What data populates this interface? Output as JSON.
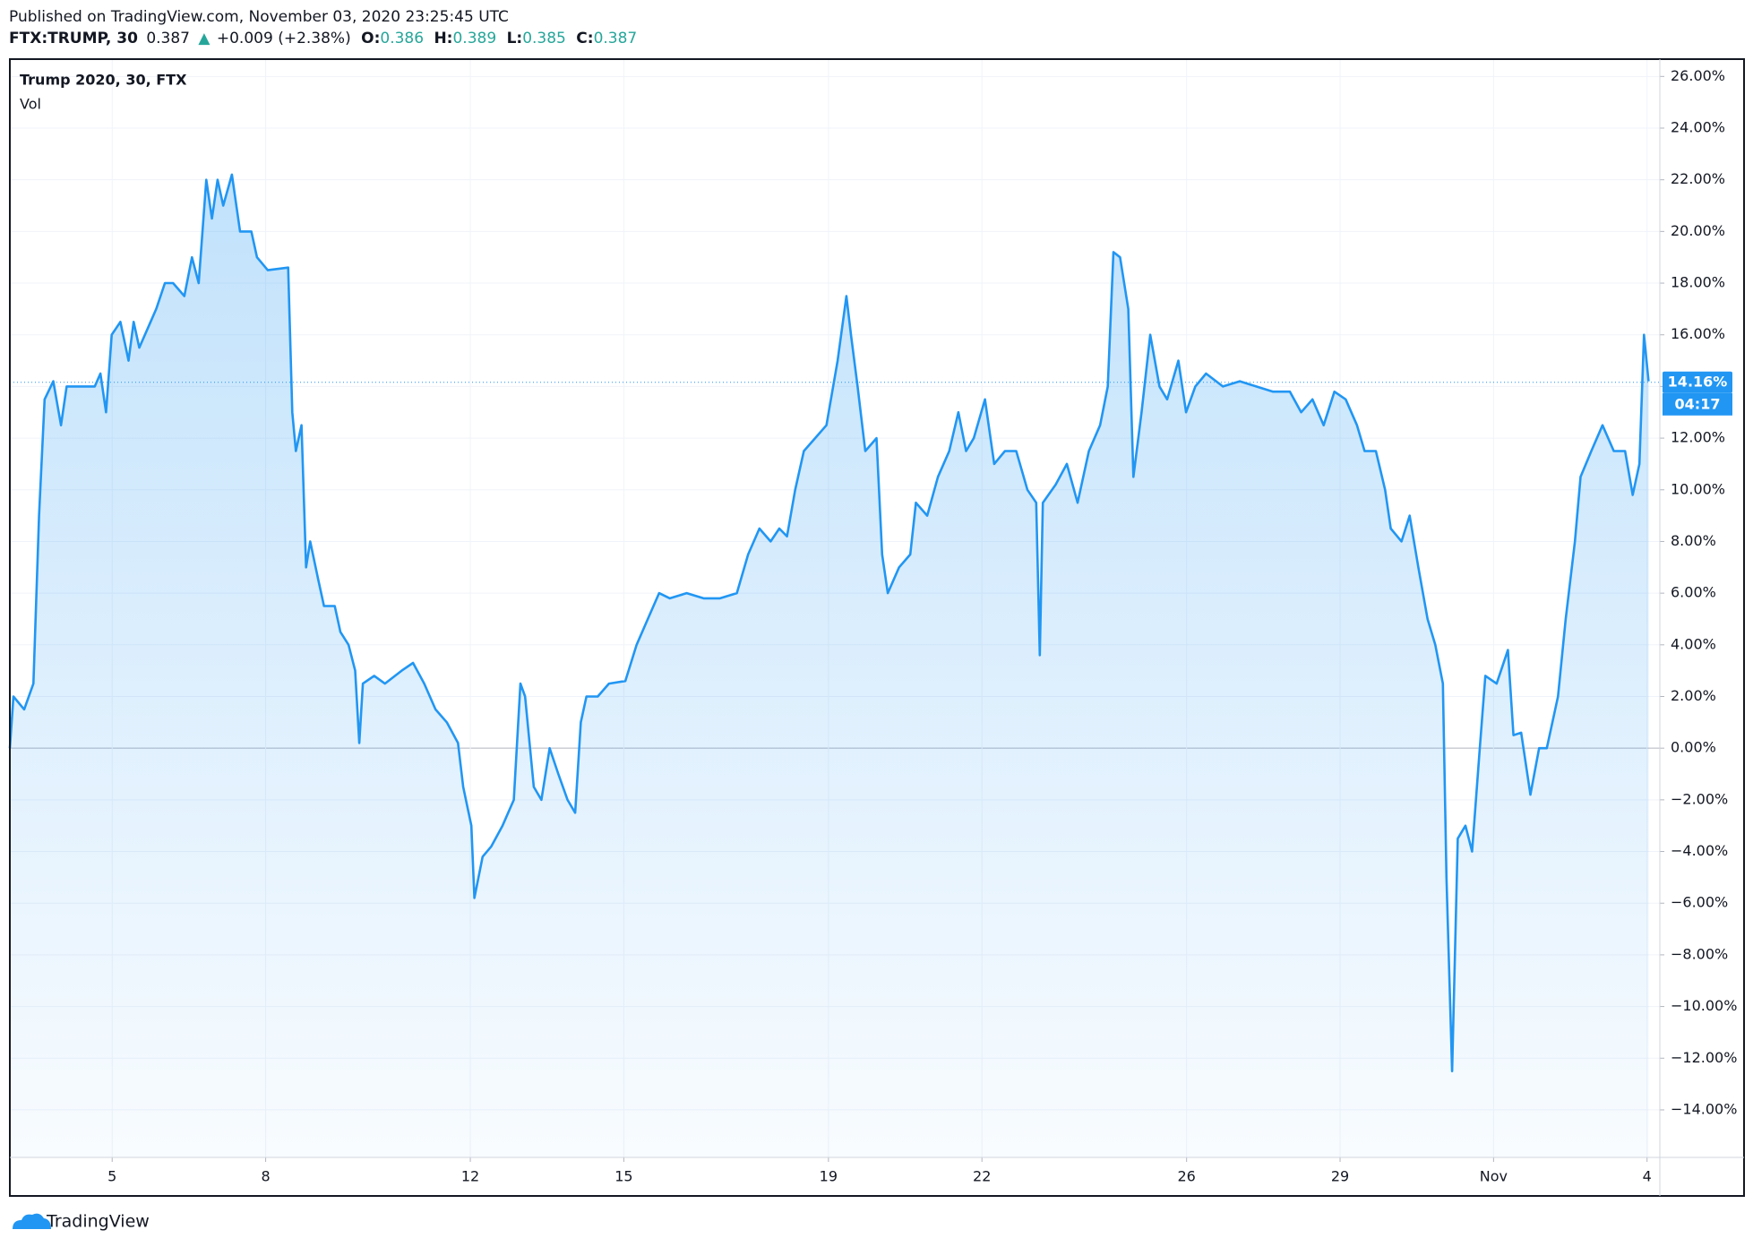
{
  "header": {
    "published": "Published on TradingView.com, November 03, 2020 23:25:45 UTC",
    "symbol": "FTX:TRUMP, 30",
    "last": "0.387",
    "arrow": "▲",
    "change": "+0.009 (+2.38%)",
    "open_label": "O:",
    "open": "0.386",
    "high_label": "H:",
    "high": "0.389",
    "low_label": "L:",
    "low": "0.385",
    "close_label": "C:",
    "close": "0.387"
  },
  "footer": {
    "brand": "TradingView"
  },
  "chart_data": {
    "type": "line",
    "title": "Trump 2020, 30, FTX",
    "indicator": "Vol",
    "color": "#2196f3",
    "grid": true,
    "last_value": {
      "value": 14.16,
      "label": "14.16%"
    },
    "countdown": "04:17",
    "xlim": [
      3,
      35.25
    ],
    "ylim": [
      -15.84,
      26.67
    ],
    "xticks": [
      5,
      8,
      12,
      15,
      19,
      22,
      26,
      29,
      {
        "value": 32,
        "label": "Nov"
      },
      {
        "value": 35,
        "label": "4"
      }
    ],
    "yticks": [
      {
        "value": -14,
        "label": "−14.00%"
      },
      {
        "value": -12,
        "label": "−12.00%"
      },
      {
        "value": -10,
        "label": "−10.00%"
      },
      {
        "value": -8,
        "label": "−8.00%"
      },
      {
        "value": -6,
        "label": "−6.00%"
      },
      {
        "value": -4,
        "label": "−4.00%"
      },
      {
        "value": -2,
        "label": "−2.00%"
      },
      {
        "value": 0,
        "label": "0.00%"
      },
      {
        "value": 2,
        "label": "2.00%"
      },
      {
        "value": 4,
        "label": "4.00%"
      },
      {
        "value": 6,
        "label": "6.00%"
      },
      {
        "value": 8,
        "label": "8.00%"
      },
      {
        "value": 10,
        "label": "10.00%"
      },
      {
        "value": 12,
        "label": "12.00%"
      },
      {
        "value": 14,
        "label": "14.00%"
      },
      {
        "value": 16,
        "label": "16.00%"
      },
      {
        "value": 18,
        "label": "18.00%"
      },
      {
        "value": 20,
        "label": "20.00%"
      },
      {
        "value": 22,
        "label": "22.00%"
      },
      {
        "value": 24,
        "label": "24.00%"
      },
      {
        "value": 26,
        "label": "26.00%"
      }
    ],
    "x": [
      3.0,
      3.07,
      3.28,
      3.46,
      3.57,
      3.68,
      3.85,
      4.0,
      4.11,
      4.33,
      4.66,
      4.77,
      4.88,
      4.99,
      5.16,
      5.32,
      5.42,
      5.53,
      5.75,
      5.86,
      6.03,
      6.19,
      6.41,
      6.56,
      6.69,
      6.84,
      6.95,
      7.06,
      7.17,
      7.34,
      7.5,
      7.72,
      7.83,
      8.04,
      8.44,
      8.52,
      8.59,
      8.7,
      8.79,
      8.87,
      9.03,
      9.14,
      9.35,
      9.46,
      9.62,
      9.75,
      9.83,
      9.9,
      10.12,
      10.33,
      10.66,
      10.88,
      11.1,
      11.32,
      11.54,
      11.76,
      11.86,
      12.02,
      12.08,
      12.24,
      12.41,
      12.63,
      12.85,
      12.98,
      13.07,
      13.24,
      13.39,
      13.55,
      13.72,
      13.9,
      14.05,
      14.16,
      14.27,
      14.49,
      14.71,
      15.03,
      15.25,
      15.47,
      15.69,
      15.9,
      16.23,
      16.56,
      16.88,
      17.21,
      17.43,
      17.65,
      17.87,
      18.04,
      18.19,
      18.35,
      18.52,
      18.74,
      18.96,
      19.18,
      19.35,
      19.44,
      19.57,
      19.72,
      19.94,
      20.05,
      20.16,
      20.38,
      20.6,
      20.71,
      20.93,
      21.14,
      21.36,
      21.54,
      21.69,
      21.84,
      22.06,
      22.24,
      22.45,
      22.67,
      22.89,
      23.06,
      23.13,
      23.19,
      23.44,
      23.66,
      23.87,
      24.09,
      24.31,
      24.46,
      24.57,
      24.7,
      24.86,
      24.96,
      25.12,
      25.29,
      25.47,
      25.62,
      25.84,
      25.99,
      26.17,
      26.38,
      26.71,
      27.04,
      27.36,
      27.69,
      28.02,
      28.24,
      28.46,
      28.68,
      28.89,
      29.11,
      29.33,
      29.48,
      29.7,
      29.88,
      29.99,
      30.2,
      30.36,
      30.53,
      30.71,
      30.86,
      31.01,
      31.08,
      31.19,
      31.3,
      31.45,
      31.58,
      31.73,
      31.84,
      32.06,
      32.28,
      32.39,
      32.54,
      32.72,
      32.89,
      33.04,
      33.26,
      33.41,
      33.59,
      33.7,
      33.91,
      34.13,
      34.35,
      34.57,
      34.72,
      34.85,
      34.94,
      35.03
    ],
    "series": [
      {
        "name": "Trump 2020, 30, FTX",
        "color": "#2196f3",
        "values": [
          0,
          2,
          1.5,
          2.5,
          9,
          13.5,
          14.2,
          12.5,
          14,
          14,
          14,
          14.5,
          13,
          16,
          16.5,
          15,
          16.5,
          15.5,
          16.5,
          17,
          18,
          18,
          17.5,
          19,
          18,
          22,
          20.5,
          22,
          21,
          22.2,
          20,
          20,
          19,
          18.5,
          18.6,
          13,
          11.5,
          12.5,
          7,
          8,
          6.5,
          5.5,
          5.5,
          4.5,
          4,
          3,
          0.2,
          2.5,
          2.8,
          2.5,
          3,
          3.3,
          2.5,
          1.5,
          1,
          0.2,
          -1.5,
          -3,
          -5.8,
          -4.2,
          -3.8,
          -3,
          -2,
          2.5,
          2,
          -1.5,
          -2,
          0,
          -1,
          -2,
          -2.5,
          1,
          2,
          2,
          2.5,
          2.6,
          4,
          5,
          6,
          5.8,
          6,
          5.8,
          5.8,
          6,
          7.5,
          8.5,
          8,
          8.5,
          8.2,
          10,
          11.5,
          12,
          12.5,
          15,
          17.5,
          16,
          14,
          11.5,
          12,
          7.5,
          6,
          7,
          7.5,
          9.5,
          9,
          10.5,
          11.5,
          13,
          11.5,
          12,
          13.5,
          11,
          11.5,
          11.5,
          10,
          9.5,
          3.6,
          9.5,
          10.2,
          11,
          9.5,
          11.5,
          12.5,
          14,
          19.2,
          19,
          17,
          10.5,
          13,
          16,
          14,
          13.5,
          15,
          13,
          14,
          14.5,
          14,
          14.2,
          14,
          13.8,
          13.8,
          13,
          13.5,
          12.5,
          13.8,
          13.5,
          12.5,
          11.5,
          11.5,
          10,
          8.5,
          8,
          9,
          7,
          5,
          4,
          2.5,
          -5,
          -12.5,
          -3.5,
          -3,
          -4,
          0,
          2.8,
          2.5,
          3.8,
          0.5,
          0.6,
          -1.8,
          0,
          0,
          2,
          5,
          8,
          10.5,
          11.5,
          12.5,
          11.5,
          11.5,
          9.8,
          11,
          16,
          14.2
        ]
      }
    ]
  }
}
